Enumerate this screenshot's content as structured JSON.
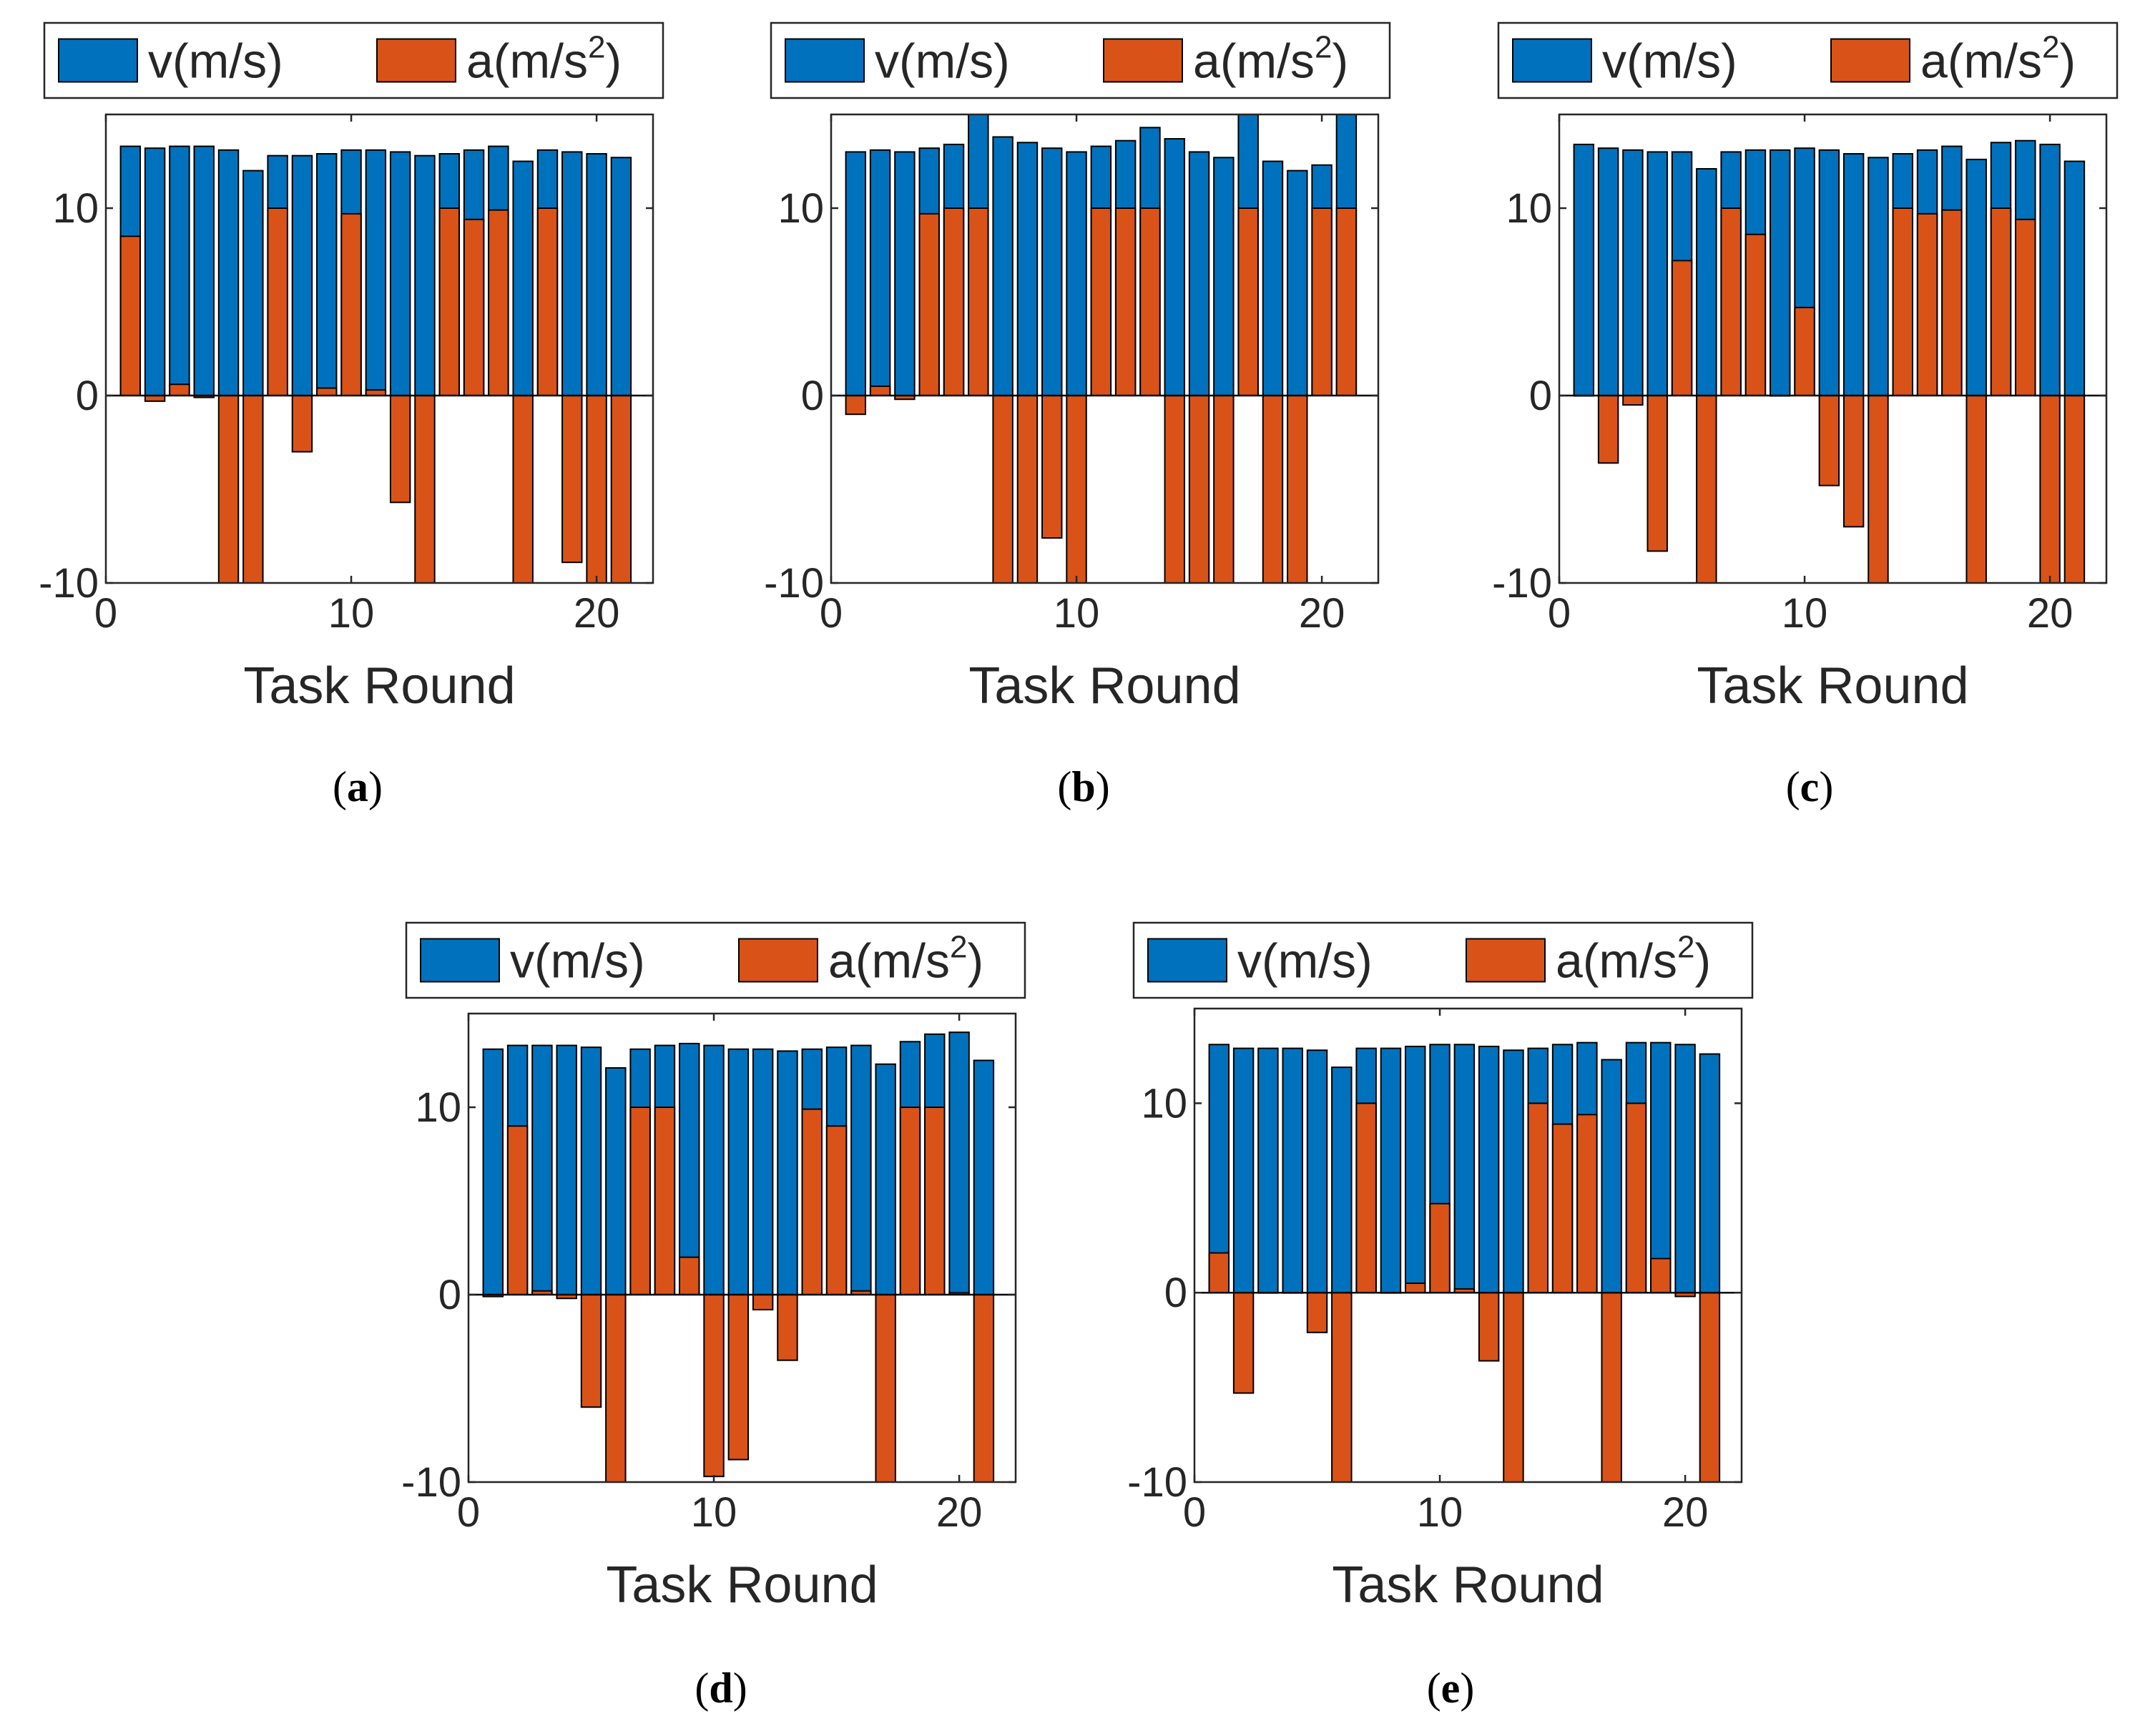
{
  "colors": {
    "velocity": "#0072BD",
    "acceleration": "#D95319",
    "edge": "#000000",
    "axis": "#262626",
    "background": "#ffffff"
  },
  "chart_data": [
    {
      "type": "bar",
      "panel": "a",
      "caption": {
        "open": "(",
        "label": "a",
        "close": ")"
      },
      "xlabel": "Task Round",
      "ylabel": "",
      "xlim": [
        0,
        22.3
      ],
      "ylim": [
        -10,
        15
      ],
      "xticks": [
        "0",
        "10",
        "20"
      ],
      "yticks": [
        "-10",
        "0",
        "10"
      ],
      "legend": {
        "position": "top",
        "v_text": "v(m/s)",
        "a_base": "a(m/s",
        "a_exp": "2",
        "a_close": ")"
      },
      "x": [
        1,
        2,
        3,
        4,
        5,
        6,
        7,
        8,
        9,
        10,
        11,
        12,
        13,
        14,
        15,
        16,
        17,
        18,
        19,
        20,
        21
      ],
      "series": [
        {
          "name": "v(m/s)",
          "values": [
            13.3,
            13.2,
            13.3,
            13.3,
            13.1,
            12.0,
            12.8,
            12.8,
            12.9,
            13.1,
            13.1,
            13.0,
            12.8,
            12.9,
            13.1,
            13.3,
            12.5,
            13.1,
            13.0,
            12.9,
            12.7
          ]
        },
        {
          "name": "a(m/s^2)",
          "values": [
            8.5,
            -0.3,
            0.6,
            -0.1,
            -10.0,
            -10.0,
            10.0,
            -3.0,
            0.4,
            9.7,
            0.3,
            -5.7,
            -10.0,
            10.0,
            9.4,
            9.9,
            -10.0,
            10.0,
            -8.9,
            -10.0,
            -10.0
          ]
        }
      ]
    },
    {
      "type": "bar",
      "panel": "b",
      "caption": {
        "open": "(",
        "label": "b",
        "close": ")"
      },
      "xlabel": "Task Round",
      "ylabel": "",
      "xlim": [
        0,
        22.3
      ],
      "ylim": [
        -10,
        15
      ],
      "xticks": [
        "0",
        "10",
        "20"
      ],
      "yticks": [
        "-10",
        "0",
        "10"
      ],
      "legend": {
        "position": "top",
        "v_text": "v(m/s)",
        "a_base": "a(m/s",
        "a_exp": "2",
        "a_close": ")"
      },
      "x": [
        1,
        2,
        3,
        4,
        5,
        6,
        7,
        8,
        9,
        10,
        11,
        12,
        13,
        14,
        15,
        16,
        17,
        18,
        19,
        20,
        21
      ],
      "series": [
        {
          "name": "v(m/s)",
          "values": [
            13.0,
            13.1,
            13.0,
            13.2,
            13.4,
            15.0,
            13.8,
            13.5,
            13.2,
            13.0,
            13.3,
            13.6,
            14.3,
            13.7,
            13.0,
            12.7,
            15.0,
            12.5,
            12.0,
            12.3,
            15.0
          ]
        },
        {
          "name": "a(m/s^2)",
          "values": [
            -1.0,
            0.5,
            -0.2,
            9.7,
            10.0,
            10.0,
            -10.0,
            -10.0,
            -7.6,
            -10.0,
            10.0,
            10.0,
            10.0,
            -10.0,
            -10.0,
            -10.0,
            10.0,
            -10.0,
            -10.0,
            10.0,
            10.0
          ]
        }
      ]
    },
    {
      "type": "bar",
      "panel": "c",
      "caption": {
        "open": "(",
        "label": "c",
        "close": ")"
      },
      "xlabel": "Task Round",
      "ylabel": "",
      "xlim": [
        0,
        22.3
      ],
      "ylim": [
        -10,
        15
      ],
      "xticks": [
        "0",
        "10",
        "20"
      ],
      "yticks": [
        "-10",
        "0",
        "10"
      ],
      "legend": {
        "position": "top",
        "v_text": "v(m/s)",
        "a_base": "a(m/s",
        "a_exp": "2",
        "a_close": ")"
      },
      "x": [
        1,
        2,
        3,
        4,
        5,
        6,
        7,
        8,
        9,
        10,
        11,
        12,
        13,
        14,
        15,
        16,
        17,
        18,
        19,
        20,
        21
      ],
      "series": [
        {
          "name": "v(m/s)",
          "values": [
            13.4,
            13.2,
            13.1,
            13.0,
            13.0,
            12.1,
            13.0,
            13.1,
            13.1,
            13.2,
            13.1,
            12.9,
            12.7,
            12.9,
            13.1,
            13.3,
            12.6,
            13.5,
            13.6,
            13.4,
            12.5
          ]
        },
        {
          "name": "a(m/s^2)",
          "values": [
            0.0,
            -3.6,
            -0.5,
            -8.3,
            7.2,
            -10.0,
            10.0,
            8.6,
            0.0,
            4.7,
            -4.8,
            -7.0,
            -10.0,
            10.0,
            9.7,
            9.9,
            -10.0,
            10.0,
            9.4,
            -10.0,
            -10.0
          ]
        }
      ]
    },
    {
      "type": "bar",
      "panel": "d",
      "caption": {
        "open": "(",
        "label": "d",
        "close": ")"
      },
      "xlabel": "Task Round",
      "ylabel": "",
      "xlim": [
        0,
        22.3
      ],
      "ylim": [
        -10,
        15
      ],
      "xticks": [
        "0",
        "10",
        "20"
      ],
      "yticks": [
        "-10",
        "0",
        "10"
      ],
      "legend": {
        "position": "top",
        "v_text": "v(m/s)",
        "a_base": "a(m/s",
        "a_exp": "2",
        "a_close": ")"
      },
      "x": [
        1,
        2,
        3,
        4,
        5,
        6,
        7,
        8,
        9,
        10,
        11,
        12,
        13,
        14,
        15,
        16,
        17,
        18,
        19,
        20,
        21
      ],
      "series": [
        {
          "name": "v(m/s)",
          "values": [
            13.1,
            13.3,
            13.3,
            13.3,
            13.2,
            12.1,
            13.1,
            13.3,
            13.4,
            13.3,
            13.1,
            13.1,
            13.0,
            13.1,
            13.2,
            13.3,
            12.3,
            13.5,
            13.9,
            14.0,
            12.5
          ]
        },
        {
          "name": "a(m/s^2)",
          "values": [
            -0.1,
            9.0,
            0.2,
            -0.2,
            -6.0,
            -10.0,
            10.0,
            10.0,
            2.0,
            -9.7,
            -8.8,
            -0.8,
            -3.5,
            9.9,
            9.0,
            0.2,
            -10.0,
            10.0,
            10.0,
            0.1,
            -10.0
          ]
        }
      ]
    },
    {
      "type": "bar",
      "panel": "e",
      "caption": {
        "open": "(",
        "label": "e",
        "close": ")"
      },
      "xlabel": "Task Round",
      "ylabel": "",
      "xlim": [
        0,
        22.3
      ],
      "ylim": [
        -10,
        15
      ],
      "xticks": [
        "0",
        "10",
        "20"
      ],
      "yticks": [
        "-10",
        "0",
        "10"
      ],
      "legend": {
        "position": "top",
        "v_text": "v(m/s)",
        "a_base": "a(m/s",
        "a_exp": "2",
        "a_close": ")"
      },
      "x": [
        1,
        2,
        3,
        4,
        5,
        6,
        7,
        8,
        9,
        10,
        11,
        12,
        13,
        14,
        15,
        16,
        17,
        18,
        19,
        20,
        21
      ],
      "series": [
        {
          "name": "v(m/s)",
          "values": [
            13.1,
            12.9,
            12.9,
            12.9,
            12.8,
            11.9,
            12.9,
            12.9,
            13.0,
            13.1,
            13.1,
            13.0,
            12.8,
            12.9,
            13.1,
            13.2,
            12.3,
            13.2,
            13.2,
            13.1,
            12.6
          ]
        },
        {
          "name": "a(m/s^2)",
          "values": [
            2.1,
            -5.3,
            0.0,
            0.0,
            -2.1,
            -10.0,
            10.0,
            0.0,
            0.5,
            4.7,
            0.2,
            -3.6,
            -10.0,
            10.0,
            8.9,
            9.4,
            -10.0,
            10.0,
            1.8,
            -0.2,
            -10.0
          ]
        }
      ]
    }
  ]
}
